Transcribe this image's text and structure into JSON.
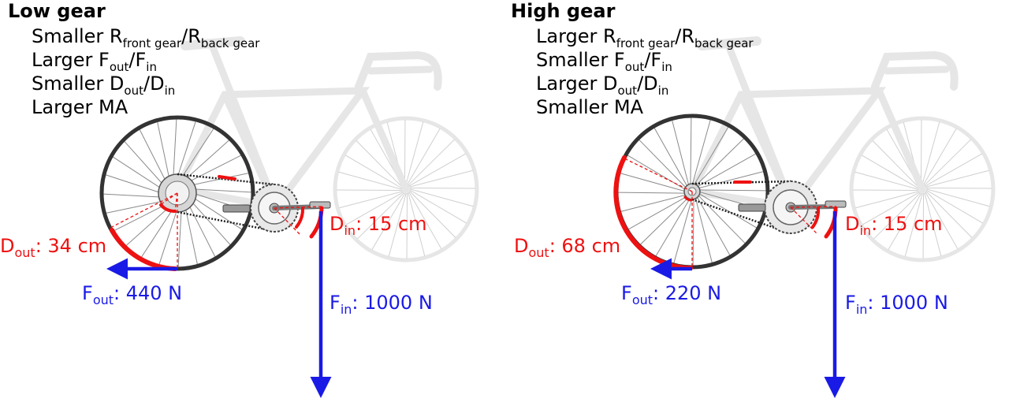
{
  "panels": {
    "low": {
      "title": "Low gear",
      "lines": [
        {
          "pre": "Smaller R",
          "s1": "front gear",
          "mid": "/R",
          "s2": "back gear"
        },
        {
          "pre": "Larger F",
          "s1": "out",
          "mid": "/F",
          "s2": "in"
        },
        {
          "pre": "Smaller D",
          "s1": "out",
          "mid": "/D",
          "s2": "in"
        },
        {
          "pre": "Larger MA",
          "s1": "",
          "mid": "",
          "s2": ""
        }
      ],
      "d_out": {
        "sym": "D",
        "sub": "out",
        "val": ": 34 cm"
      },
      "d_in": {
        "sym": "D",
        "sub": "in",
        "val": ": 15 cm"
      },
      "f_out": {
        "sym": "F",
        "sub": "out",
        "val": ": 440 N"
      },
      "f_in": {
        "sym": "F",
        "sub": "in",
        "val": ": 1000 N"
      }
    },
    "high": {
      "title": "High gear",
      "lines": [
        {
          "pre": "Larger R",
          "s1": "front gear",
          "mid": "/R",
          "s2": "back gear"
        },
        {
          "pre": "Smaller F",
          "s1": "out",
          "mid": "/F",
          "s2": "in"
        },
        {
          "pre": "Larger D",
          "s1": "out",
          "mid": "/D",
          "s2": "in"
        },
        {
          "pre": "Smaller MA",
          "s1": "",
          "mid": "",
          "s2": ""
        }
      ],
      "d_out": {
        "sym": "D",
        "sub": "out",
        "val": ": 68 cm"
      },
      "d_in": {
        "sym": "D",
        "sub": "in",
        "val": ": 15 cm"
      },
      "f_out": {
        "sym": "F",
        "sub": "out",
        "val": ": 220 N"
      },
      "f_in": {
        "sym": "F",
        "sub": "in",
        "val": ": 1000 N"
      }
    }
  },
  "colors": {
    "distance": "#ee1111",
    "force": "#1a1ae6",
    "ghost_bike": "#e6e6e6",
    "rear_wheel": "#333333"
  }
}
